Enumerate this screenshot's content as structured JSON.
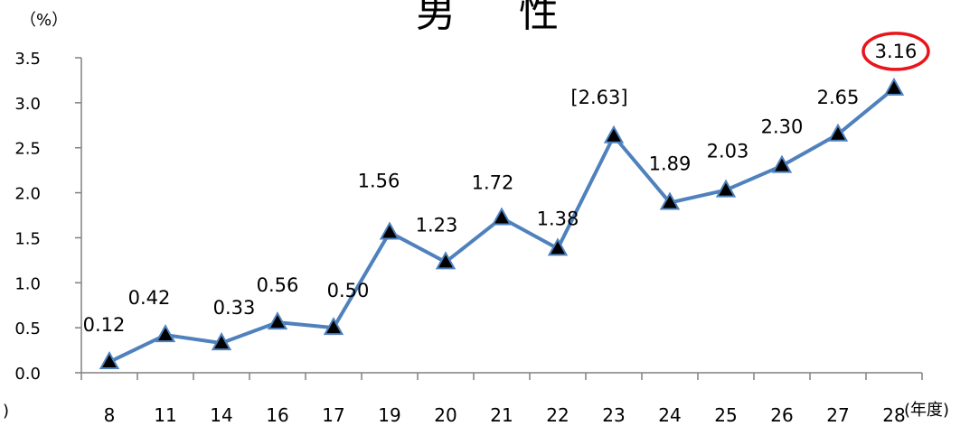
{
  "chart_data": {
    "type": "line",
    "title": "男 性",
    "ylabel": "（%）",
    "xlabel": "(年度)",
    "categories": [
      "8",
      "11",
      "14",
      "16",
      "17",
      "19",
      "20",
      "21",
      "22",
      "23",
      "24",
      "25",
      "26",
      "27",
      "28"
    ],
    "series": [
      {
        "values": [
          0.12,
          0.42,
          0.33,
          0.56,
          0.5,
          1.56,
          1.23,
          1.72,
          1.38,
          2.63,
          1.89,
          2.03,
          2.3,
          2.65,
          3.16
        ]
      }
    ],
    "data_labels": [
      "0.12",
      "0.42",
      "0.33",
      "0.56",
      "0.50",
      "1.56",
      "1.23",
      "1.72",
      "1.38",
      "[2.63]",
      "1.89",
      "2.03",
      "2.30",
      "2.65",
      "3.16"
    ],
    "y_ticks": [
      "0.0",
      "0.5",
      "1.0",
      "1.5",
      "2.0",
      "2.5",
      "3.0",
      "3.5"
    ],
    "ylim": [
      0,
      3.5
    ],
    "grid": false,
    "legend": "none",
    "highlight_index": 14,
    "colors": {
      "line": "#4f81bd",
      "marker": "#000000",
      "highlight": "#e8161c",
      "axis": "#808080"
    }
  },
  "stray_text": ")"
}
